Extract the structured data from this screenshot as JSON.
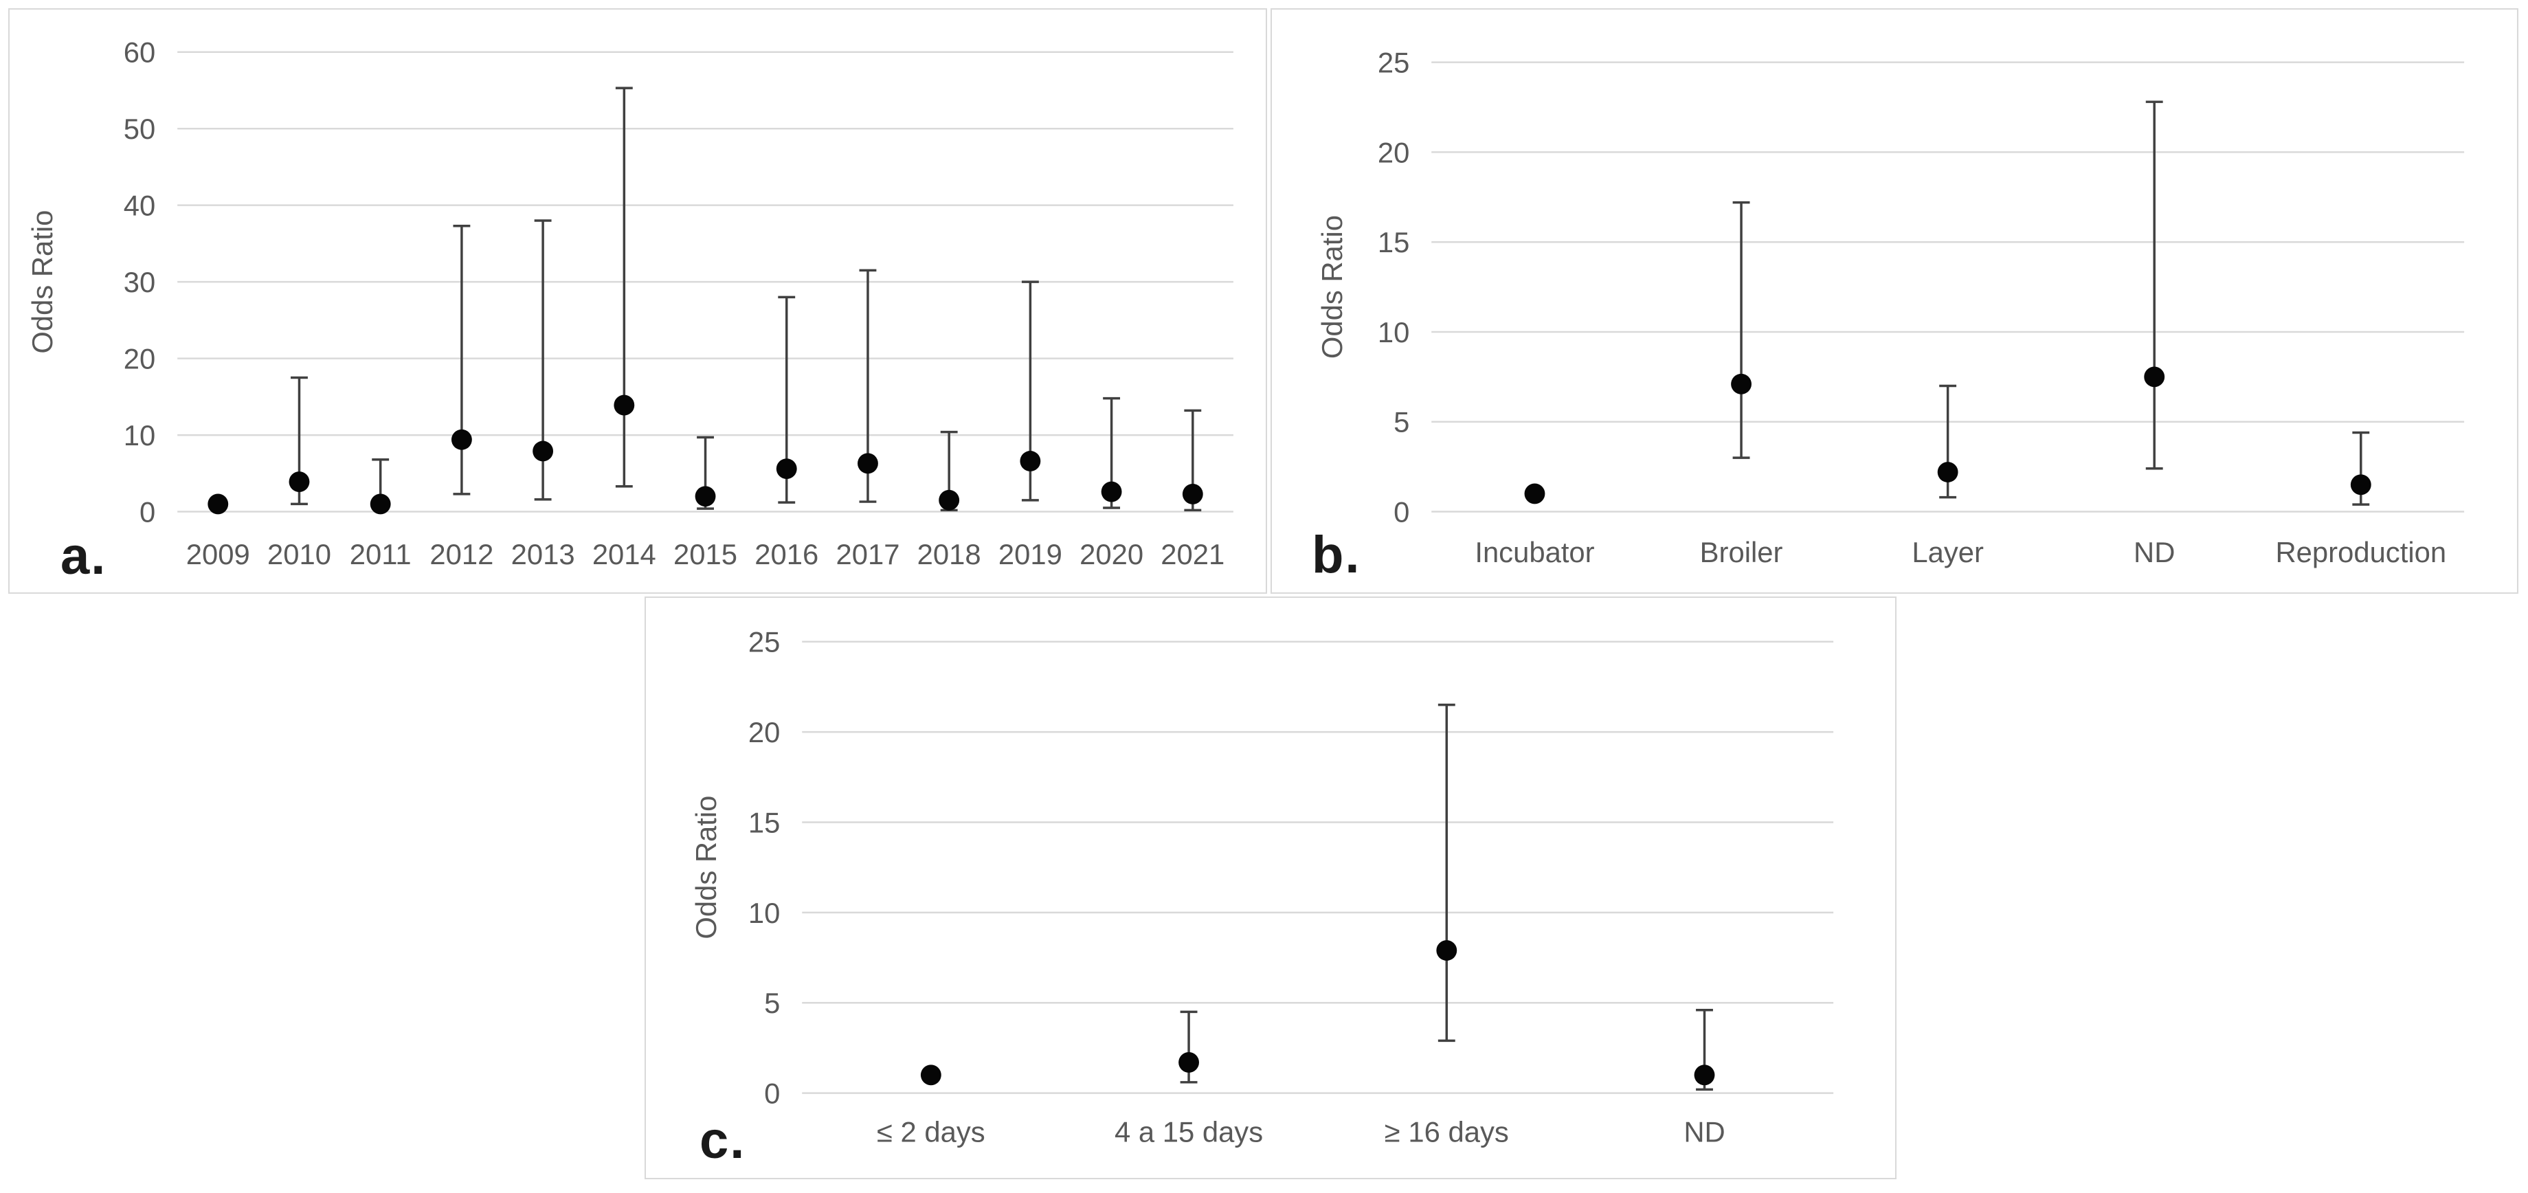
{
  "figure": {
    "description": "Three-panel odds ratio forest plot figure",
    "panels": [
      {
        "label": "a."
      },
      {
        "label": "b."
      },
      {
        "label": "c."
      }
    ]
  },
  "colors": {
    "background": "#ffffff",
    "panel_border": "#d9d9d9",
    "gridline": "#d9d9d9",
    "error_bar": "#404040",
    "marker": "#060606",
    "axis_text": "#595959",
    "panel_letter": "#1a1a1a"
  },
  "chart_data": [
    {
      "panel_label": "a.",
      "type": "scatter",
      "title": "",
      "xlabel": "",
      "ylabel": "Odds Ratio",
      "ylim": [
        0,
        60
      ],
      "yticks": [
        0,
        10,
        20,
        30,
        40,
        50,
        60
      ],
      "grid": true,
      "legend": false,
      "marker": "filled-circle",
      "error_bars": "95% CI vertical whiskers with caps",
      "categories": [
        "2009",
        "2010",
        "2011",
        "2012",
        "2013",
        "2014",
        "2015",
        "2016",
        "2017",
        "2018",
        "2019",
        "2020",
        "2021"
      ],
      "values": [
        1.0,
        3.9,
        1.0,
        9.4,
        7.9,
        13.9,
        2.0,
        5.6,
        6.3,
        1.5,
        6.6,
        2.6,
        2.3
      ],
      "ci_low": [
        null,
        1.0,
        0.4,
        2.3,
        1.6,
        3.3,
        0.4,
        1.2,
        1.3,
        0.2,
        1.5,
        0.5,
        0.2
      ],
      "ci_high": [
        null,
        17.5,
        6.8,
        37.3,
        38.0,
        55.3,
        9.7,
        28.0,
        31.5,
        10.4,
        30.0,
        14.8,
        13.2
      ]
    },
    {
      "panel_label": "b.",
      "type": "scatter",
      "title": "",
      "xlabel": "",
      "ylabel": "Odds Ratio",
      "ylim": [
        0,
        25
      ],
      "yticks": [
        0,
        5,
        10,
        15,
        20,
        25
      ],
      "grid": true,
      "legend": false,
      "marker": "filled-circle",
      "error_bars": "95% CI vertical whiskers with caps",
      "categories": [
        "Incubator",
        "Broiler",
        "Layer",
        "ND",
        "Reproduction"
      ],
      "values": [
        1.0,
        7.1,
        2.2,
        7.5,
        1.5
      ],
      "ci_low": [
        null,
        3.0,
        0.8,
        2.4,
        0.4
      ],
      "ci_high": [
        null,
        17.2,
        7.0,
        22.8,
        4.4
      ]
    },
    {
      "panel_label": "c.",
      "type": "scatter",
      "title": "",
      "xlabel": "",
      "ylabel": "Odds Ratio",
      "ylim": [
        0,
        25
      ],
      "yticks": [
        0,
        5,
        10,
        15,
        20,
        25
      ],
      "grid": true,
      "legend": false,
      "marker": "filled-circle",
      "error_bars": "95% CI vertical whiskers with caps",
      "categories": [
        "≤ 2 days",
        "4 a 15 days",
        "≥ 16 days",
        "ND"
      ],
      "values": [
        1.0,
        1.7,
        7.9,
        1.0
      ],
      "ci_low": [
        null,
        0.6,
        2.9,
        0.2
      ],
      "ci_high": [
        null,
        4.5,
        21.5,
        4.6
      ]
    }
  ]
}
